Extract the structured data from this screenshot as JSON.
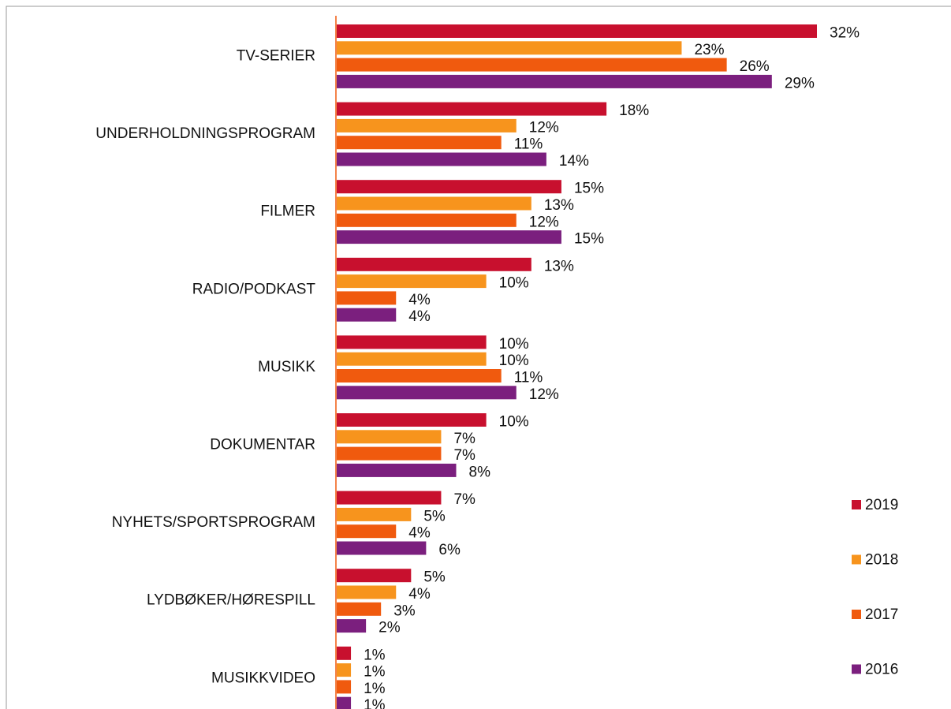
{
  "chart_data": {
    "type": "bar",
    "orientation": "horizontal",
    "categories": [
      "TV-SERIER",
      "UNDERHOLDNINGSPROGRAM",
      "FILMER",
      "RADIO/PODKAST",
      "MUSIKK ",
      "DOKUMENTAR",
      "NYHETS/SPORTSPROGRAM",
      "LYDBØKER/HØRESPILL",
      "MUSIKKVIDEO"
    ],
    "series": [
      {
        "name": "2019",
        "color": "#c8102e",
        "values": [
          32,
          18,
          15,
          13,
          10,
          10,
          7,
          5,
          1
        ],
        "value_labels": [
          "32%",
          "18%",
          "15%",
          "13%",
          "10%",
          "10%",
          "7%",
          "5%",
          "1%"
        ]
      },
      {
        "name": "2018",
        "color": "#f7941d",
        "values": [
          23,
          12,
          13,
          10,
          10,
          7,
          5,
          4,
          1
        ],
        "value_labels": [
          "23%",
          "12%",
          "13%",
          "10%",
          "10%",
          "7%",
          "5%",
          "4%",
          "1%"
        ]
      },
      {
        "name": "2017",
        "color": "#f05a0e",
        "values": [
          26,
          11,
          12,
          4,
          11,
          7,
          4,
          3,
          1
        ],
        "value_labels": [
          "26%",
          "11%",
          "12%",
          "4%",
          "11%",
          "7%",
          "4%",
          "3%",
          "1%"
        ]
      },
      {
        "name": "2016",
        "color": "#7b1f7e",
        "values": [
          29,
          14,
          15,
          4,
          12,
          8,
          6,
          2,
          1
        ],
        "value_labels": [
          "29%",
          "14%",
          "15%",
          "4%",
          "12%",
          "8%",
          "6%",
          "2%",
          "1%"
        ]
      }
    ],
    "legend": "right"
  }
}
